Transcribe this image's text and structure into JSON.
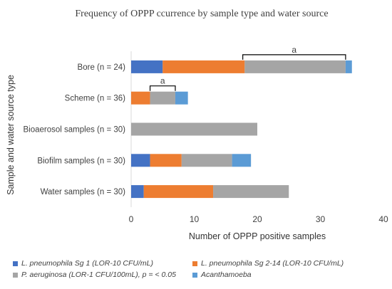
{
  "chart_data": {
    "type": "bar",
    "orientation": "horizontal",
    "stacked": true,
    "title": "Frequency of OPPP ccurrence by sample type and water source",
    "xlabel": "Number of OPPP positive samples",
    "ylabel": "Sample and water source type",
    "xlim": [
      0,
      40
    ],
    "xticks": [
      "0",
      "10",
      "20",
      "30",
      "40"
    ],
    "grid": false,
    "legend_position": "bottom",
    "categories": [
      "Bore (n = 24)",
      "Scheme (n = 36)",
      "Bioaerosol samples (n = 30)",
      "Biofilm samples (n = 30)",
      "Water samples (n = 30)"
    ],
    "series": [
      {
        "name": "L. pneumophila Sg 1 (LOR-10 CFU/mL)",
        "color": "#4472c4",
        "values": [
          5,
          0,
          0,
          3,
          2
        ]
      },
      {
        "name": "L. pneumophila Sg 2-14 (LOR-10 CFU/mL)",
        "color": "#ed7d31",
        "values": [
          13,
          3,
          0,
          5,
          11
        ]
      },
      {
        "name": "P. aeruginosa (LOR-1 CFU/100mL), p = < 0.05",
        "color": "#a5a5a5",
        "values": [
          16,
          4,
          20,
          8,
          12
        ]
      },
      {
        "name": "Acanthamoeba",
        "color": "#5b9bd5",
        "values": [
          1,
          2,
          0,
          3,
          0
        ]
      }
    ],
    "annotations": [
      {
        "text": "a",
        "category": "Bore (n = 24)",
        "x_start": 17.7,
        "x_end": 34
      },
      {
        "text": "a",
        "category": "Scheme (n = 36)",
        "x_start": 3,
        "x_end": 7
      }
    ]
  }
}
